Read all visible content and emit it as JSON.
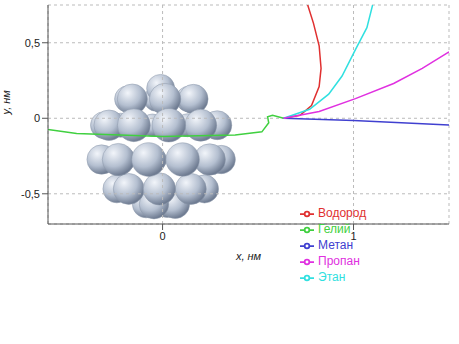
{
  "chart_data": {
    "type": "line",
    "xlabel": "x, нм",
    "ylabel": "y, нм",
    "xlim": [
      -0.6,
      1.5
    ],
    "ylim": [
      -0.7,
      0.75
    ],
    "xticks": [
      0,
      1
    ],
    "yticks": [
      {
        "value": -0.5,
        "label": "-0,5"
      },
      0,
      {
        "value": 0.5,
        "label": "0,5"
      }
    ],
    "grid": true,
    "legend": "lower right",
    "series": [
      {
        "name": "Водород",
        "color": "#e03030",
        "x": [
          0.634,
          0.72,
          0.78,
          0.82,
          0.83,
          0.82,
          0.79,
          0.76
        ],
        "values": [
          0,
          0.02,
          0.084,
          0.21,
          0.33,
          0.48,
          0.63,
          0.75
        ]
      },
      {
        "name": "Гелий",
        "color": "#40d040",
        "x": [
          -0.6,
          -0.45,
          0,
          0.38,
          0.52,
          0.556,
          0.55,
          0.576,
          0.634
        ],
        "values": [
          -0.074,
          -0.1,
          -0.12,
          -0.11,
          -0.09,
          -0.03,
          0.01,
          0.02,
          0
        ]
      },
      {
        "name": "Метан",
        "color": "#4040d0",
        "x": [
          0.634,
          1.0,
          1.5
        ],
        "values": [
          0,
          -0.015,
          -0.045
        ]
      },
      {
        "name": "Этан",
        "color": "#30e0e0",
        "x": [
          0.634,
          0.77,
          0.87,
          0.94,
          1.01,
          1.07,
          1.1
        ],
        "values": [
          0,
          0.06,
          0.16,
          0.28,
          0.455,
          0.6,
          0.75
        ]
      },
      {
        "name": "Пропан",
        "color": "#e030e0",
        "x": [
          0.634,
          0.82,
          1.01,
          1.21,
          1.36,
          1.5
        ],
        "values": [
          0,
          0.045,
          0.13,
          0.23,
          0.33,
          0.44
        ]
      }
    ]
  }
}
